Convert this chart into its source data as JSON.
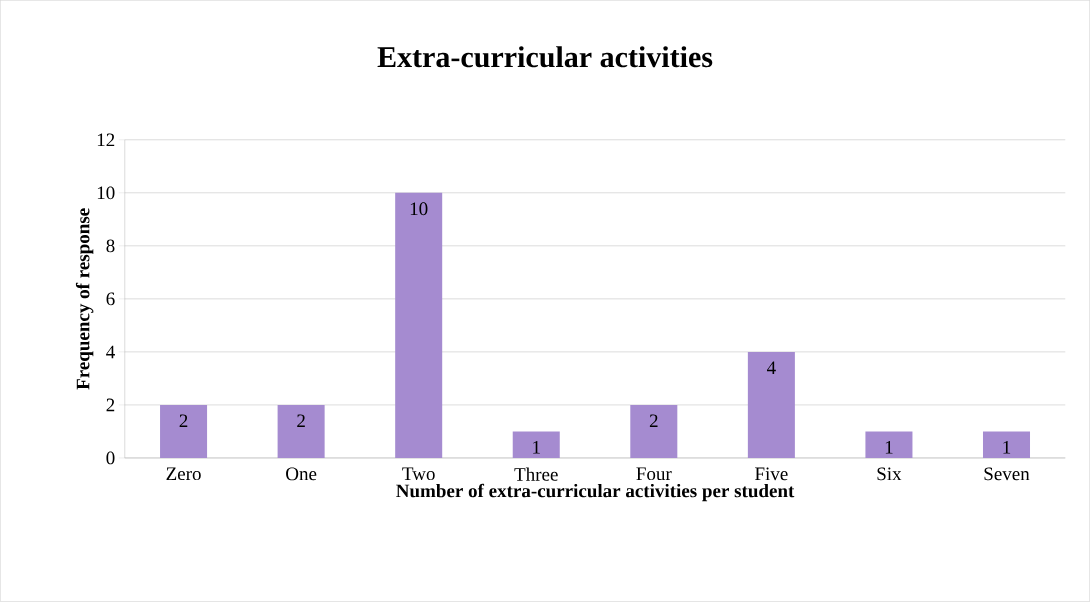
{
  "chart_data": {
    "type": "bar",
    "title": "Extra-curricular activities",
    "xlabel": "Number of extra-curricular activities per student",
    "ylabel": "Frequency of response",
    "categories": [
      "Zero",
      "One",
      "Two",
      "Three",
      "Four",
      "Five",
      "Six",
      "Seven"
    ],
    "values": [
      2,
      2,
      10,
      1,
      2,
      4,
      1,
      1
    ],
    "color": "#a58bd0",
    "ylim": [
      0,
      12
    ],
    "yticks": [
      0,
      2,
      4,
      6,
      8,
      10,
      12
    ],
    "grid": "y",
    "data_labels": true
  }
}
